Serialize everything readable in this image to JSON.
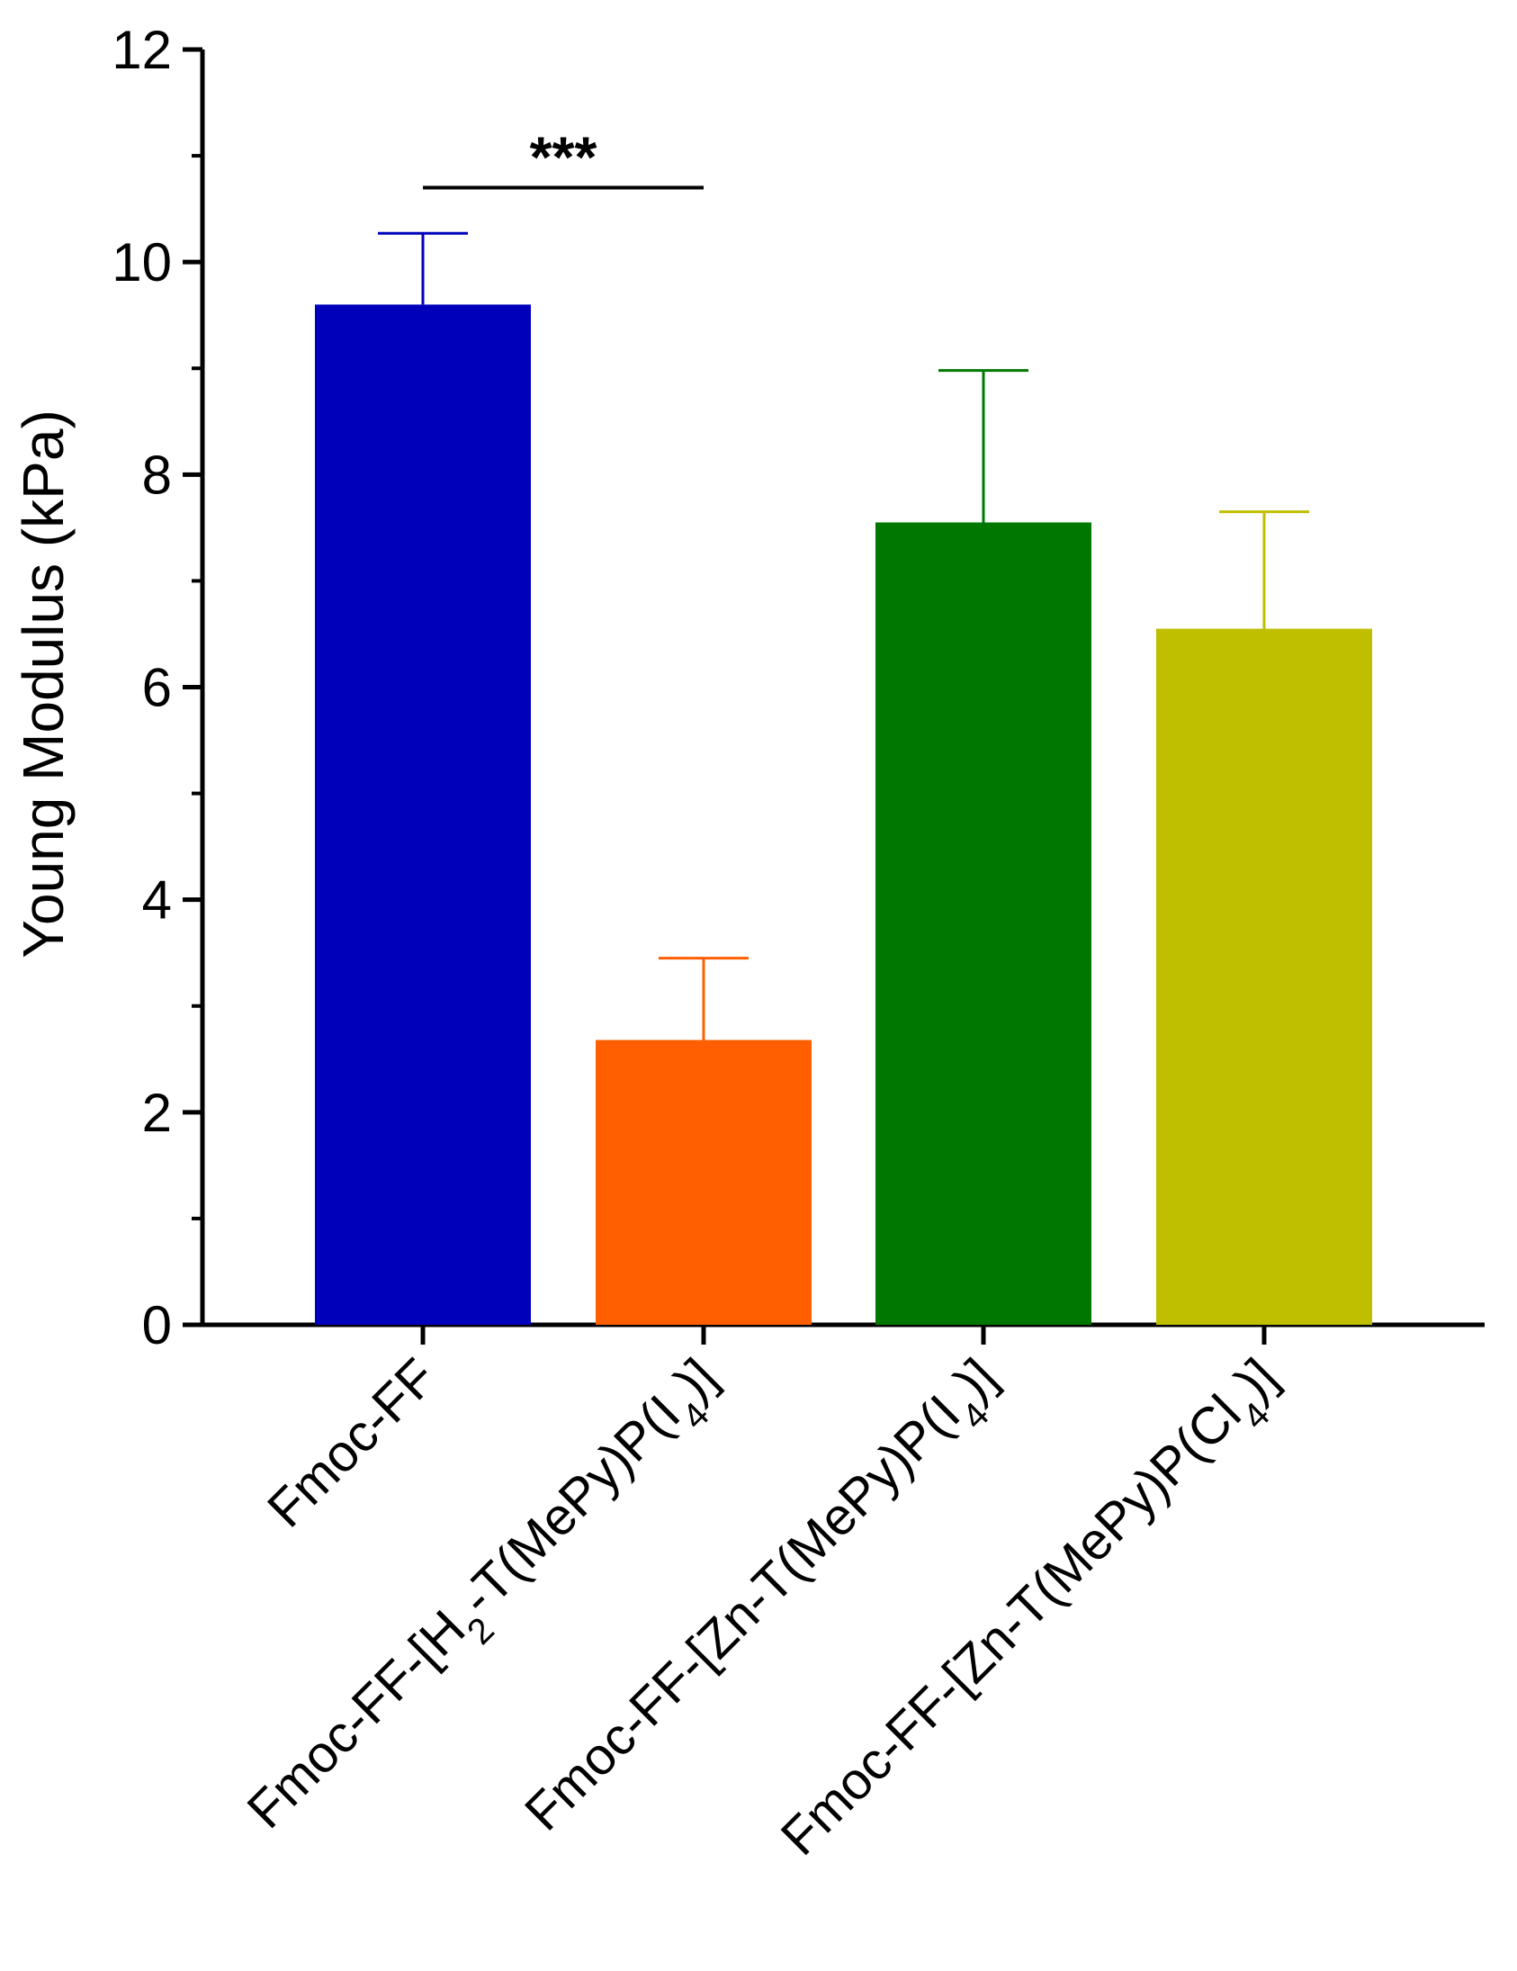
{
  "chart_data": {
    "type": "bar",
    "title": "",
    "xlabel": "",
    "ylabel": "Young Modulus (kPa)",
    "ylim": [
      0,
      12
    ],
    "yticks": [
      0,
      2,
      4,
      6,
      8,
      10,
      12
    ],
    "yticks_minor": [
      1,
      3,
      5,
      7,
      9,
      11
    ],
    "categories": [
      {
        "name": "Fmoc-FF",
        "parts": [
          {
            "t": "Fmoc-FF"
          }
        ]
      },
      {
        "name": "Fmoc-FF-[H2-T(MePy)P(I4)]",
        "parts": [
          {
            "t": "Fmoc-FF-[H"
          },
          {
            "t": "2",
            "sub": true
          },
          {
            "t": "-T(MePy)P(I"
          },
          {
            "t": "4",
            "sub": true
          },
          {
            "t": ")]"
          }
        ]
      },
      {
        "name": "Fmoc-FF-[Zn-T(MePy)P(I4)]",
        "parts": [
          {
            "t": "Fmoc-FF-[Zn-T(MePy)P(I"
          },
          {
            "t": "4",
            "sub": true
          },
          {
            "t": ")]"
          }
        ]
      },
      {
        "name": "Fmoc-FF-[Zn-T(MePy)P(Cl4)]",
        "parts": [
          {
            "t": "Fmoc-FF-[Zn-T(MePy)P(Cl"
          },
          {
            "t": "4",
            "sub": true
          },
          {
            "t": ")]"
          }
        ]
      }
    ],
    "values": [
      9.6,
      2.68,
      7.55,
      6.55
    ],
    "errors": [
      0.67,
      0.77,
      1.43,
      1.1
    ],
    "colors": [
      "#0000bb",
      "#ff5f00",
      "#007800",
      "#bfbf00"
    ],
    "significance": [
      {
        "from": 0,
        "to": 1,
        "label": "***",
        "y": 10.7
      }
    ]
  }
}
